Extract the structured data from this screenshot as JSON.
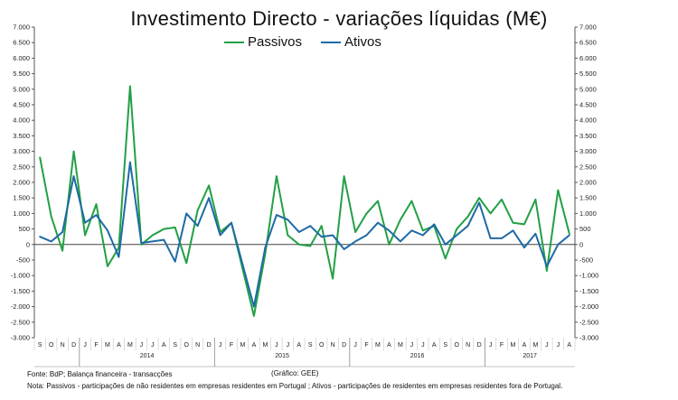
{
  "chart_data": {
    "type": "line",
    "title": "Investimento  Directo - variações líquidas (M€)",
    "ylim": [
      -3000,
      7000
    ],
    "yticks": [
      -3000,
      -2500,
      -2000,
      -1500,
      -1000,
      -500,
      0,
      500,
      1000,
      1500,
      2000,
      2500,
      3000,
      3500,
      4000,
      4500,
      5000,
      5500,
      6000,
      6500,
      7000
    ],
    "ytick_labels": [
      "-3.000",
      "-2.500",
      "-2.000",
      "-1.500",
      "-1.000",
      "-500",
      "0",
      "500",
      "1.000",
      "1.500",
      "2.000",
      "2.500",
      "3.000",
      "3.500",
      "4.000",
      "4.500",
      "5.000",
      "5.500",
      "6.000",
      "6.500",
      "7.000"
    ],
    "categories": [
      "S",
      "O",
      "N",
      "D",
      "J",
      "F",
      "M",
      "A",
      "M",
      "J",
      "J",
      "A",
      "S",
      "O",
      "N",
      "D",
      "J",
      "F",
      "M",
      "A",
      "M",
      "J",
      "J",
      "A",
      "S",
      "O",
      "N",
      "D",
      "J",
      "F",
      "M",
      "A",
      "M",
      "J",
      "J",
      "A",
      "S",
      "O",
      "N",
      "D",
      "J",
      "F",
      "M",
      "A",
      "M",
      "J",
      "J",
      "A"
    ],
    "year_labels": [
      {
        "label": "2014",
        "start": 4,
        "end": 15
      },
      {
        "label": "2015",
        "start": 16,
        "end": 27
      },
      {
        "label": "2016",
        "start": 28,
        "end": 39
      },
      {
        "label": "2017",
        "start": 40,
        "end": 47
      }
    ],
    "year_separators": [
      3.5,
      15.5,
      27.5,
      39.5
    ],
    "series": [
      {
        "name": "Passivos",
        "color": "#22a045",
        "values": [
          2800,
          900,
          -200,
          3000,
          300,
          1300,
          -700,
          -100,
          5100,
          0,
          300,
          500,
          550,
          -600,
          1100,
          1900,
          400,
          700,
          -800,
          -2300,
          -300,
          2200,
          300,
          0,
          -50,
          600,
          -1100,
          2200,
          400,
          1000,
          1400,
          0,
          800,
          1400,
          450,
          600,
          -450,
          500,
          900,
          1500,
          1000,
          1450,
          700,
          650,
          1450,
          -850,
          1750,
          350
        ]
      },
      {
        "name": "Ativos",
        "color": "#1f6aa5",
        "values": [
          250,
          100,
          400,
          2200,
          700,
          950,
          450,
          -400,
          2650,
          50,
          100,
          150,
          -550,
          1000,
          600,
          1500,
          300,
          700,
          -650,
          -2000,
          -100,
          950,
          800,
          400,
          600,
          250,
          300,
          -150,
          100,
          300,
          700,
          450,
          100,
          450,
          300,
          650,
          0,
          300,
          600,
          1350,
          200,
          200,
          450,
          -100,
          350,
          -700,
          0,
          300
        ]
      }
    ],
    "legend_position": "top-center"
  },
  "footer": {
    "source": "Fonte: BdP; Balança financeira - transacções",
    "credit": "(Gráfico: GEE)",
    "note": "Nota: Passivos - participações de não residentes em empresas residentes em Portugal ; Ativos - participações de residentes em empresas residentes fora de Portugal."
  }
}
